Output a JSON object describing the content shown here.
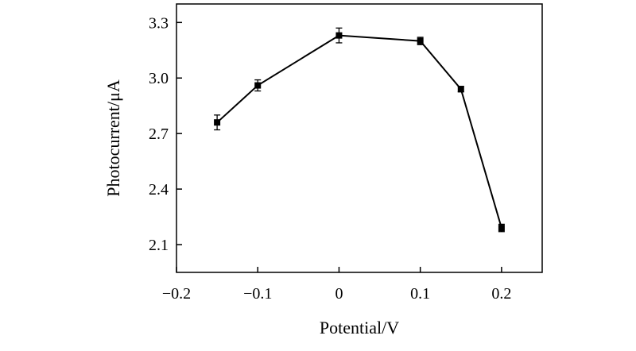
{
  "chart_data": {
    "type": "line",
    "title": "",
    "xlabel": "Potential/V",
    "ylabel": "Photocurrent/μA",
    "xlim": [
      -0.2,
      0.25
    ],
    "ylim": [
      1.95,
      3.4
    ],
    "xticks": [
      -0.2,
      -0.1,
      0,
      0.1,
      0.2
    ],
    "xtick_labels": [
      "−0.2",
      "−0.1",
      "0",
      "0.1",
      "0.2"
    ],
    "yticks": [
      2.1,
      2.4,
      2.7,
      3.0,
      3.3
    ],
    "ytick_labels": [
      "2.1",
      "2.4",
      "2.7",
      "3.0",
      "3.3"
    ],
    "grid": false,
    "series": [
      {
        "name": "Photocurrent",
        "x": [
          -0.15,
          -0.1,
          0,
          0.1,
          0.15,
          0.2
        ],
        "y": [
          2.76,
          2.96,
          3.23,
          3.2,
          2.94,
          2.19
        ],
        "error": [
          0.04,
          0.03,
          0.04,
          0.02,
          0.015,
          0.02
        ]
      }
    ]
  }
}
